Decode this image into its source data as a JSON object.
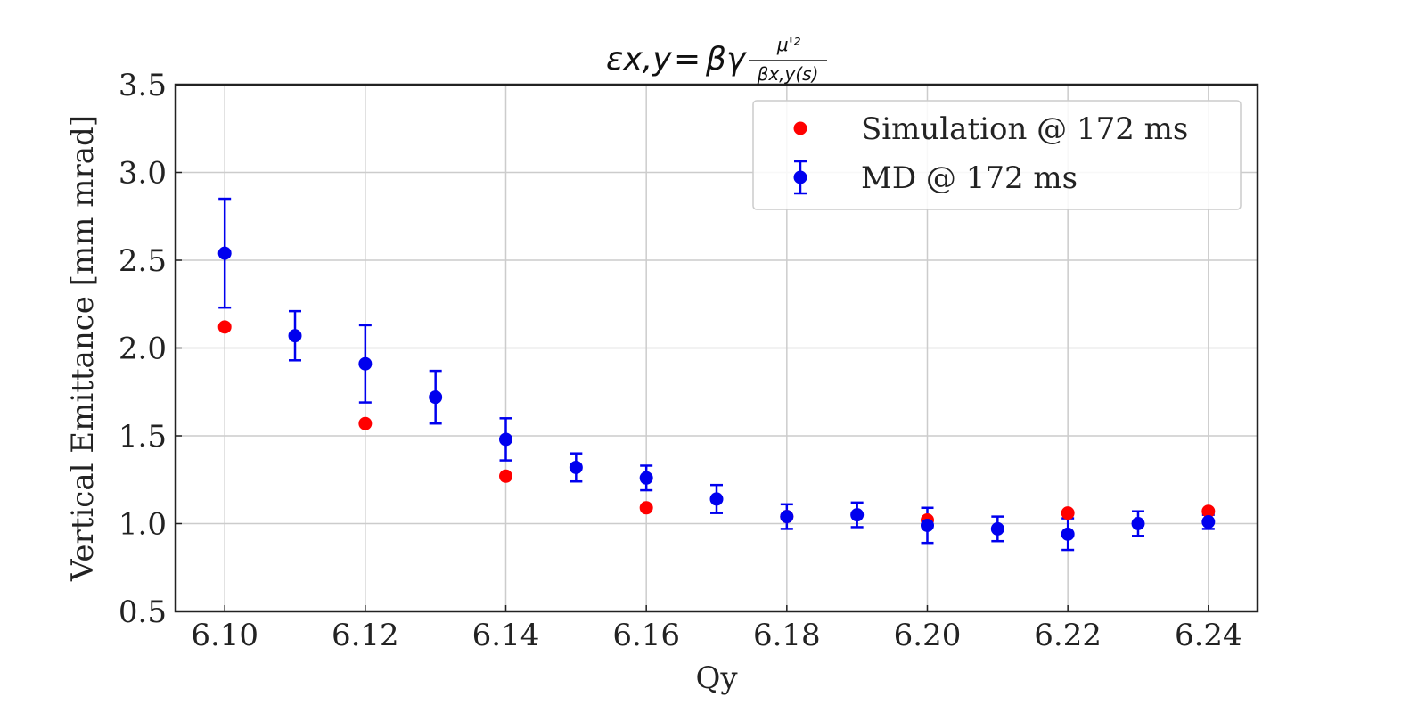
{
  "chart_data": {
    "type": "scatter",
    "title": "ε_{x,y} = βγ μ'² / β_{x,y}(s)",
    "title_parts": {
      "lhs": "εx,y",
      "rhs": "βγ",
      "numerator": "μ'²",
      "denominator": "βx,y(s)"
    },
    "xlabel": "Qy",
    "ylabel": "Vertical Emittance [mm mrad]",
    "xlim": [
      6.093,
      6.247
    ],
    "ylim": [
      0.5,
      3.5
    ],
    "xticks": [
      "6.10",
      "6.12",
      "6.14",
      "6.16",
      "6.18",
      "6.20",
      "6.22",
      "6.24"
    ],
    "yticks": [
      "0.5",
      "1.0",
      "1.5",
      "2.0",
      "2.5",
      "3.0",
      "3.5"
    ],
    "grid": true,
    "legend_position": "top-right",
    "series": [
      {
        "name": "Simulation @ 172 ms",
        "color": "#ff0000",
        "x": [
          6.1,
          6.12,
          6.14,
          6.16,
          6.18,
          6.2,
          6.22,
          6.24
        ],
        "y": [
          2.12,
          1.57,
          1.27,
          1.09,
          1.04,
          1.02,
          1.06,
          1.07
        ]
      },
      {
        "name": "MD @ 172 ms",
        "color": "#0000ee",
        "errorbars": true,
        "x": [
          6.1,
          6.11,
          6.12,
          6.13,
          6.14,
          6.15,
          6.16,
          6.17,
          6.18,
          6.19,
          6.2,
          6.21,
          6.22,
          6.23,
          6.24
        ],
        "y": [
          2.54,
          2.07,
          1.91,
          1.72,
          1.48,
          1.32,
          1.26,
          1.14,
          1.04,
          1.05,
          0.99,
          0.97,
          0.94,
          1.0,
          1.01
        ],
        "yerr": [
          0.31,
          0.14,
          0.22,
          0.15,
          0.12,
          0.08,
          0.07,
          0.08,
          0.07,
          0.07,
          0.1,
          0.07,
          0.09,
          0.07,
          0.04
        ]
      }
    ]
  }
}
